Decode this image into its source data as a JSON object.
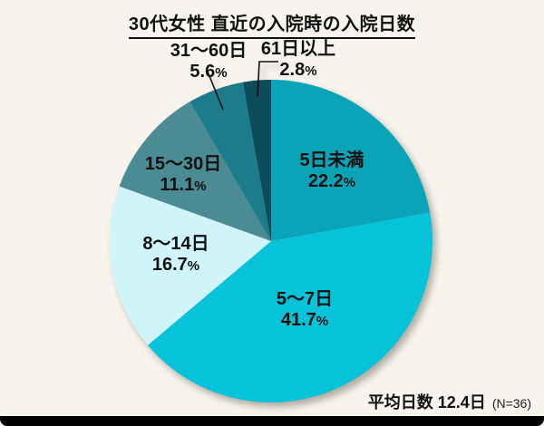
{
  "title": "30代女性 直近の入院時の入院日数",
  "chart_data": {
    "type": "pie",
    "title": "30代女性 直近の入院時の入院日数",
    "start_angle": "12 o'clock",
    "direction": "clockwise",
    "percent_suffix": "%",
    "slices": [
      {
        "label": "5日未満",
        "pct": "22.2",
        "value": 22.2,
        "color": "#0aa4b8"
      },
      {
        "label": "5〜7日",
        "pct": "41.7",
        "value": 41.7,
        "color": "#06c3d9"
      },
      {
        "label": "8〜14日",
        "pct": "16.7",
        "value": 16.7,
        "color": "#cff5fb"
      },
      {
        "label": "15〜30日",
        "pct": "11.1",
        "value": 11.1,
        "color": "#4b8b94"
      },
      {
        "label": "31〜60日",
        "pct": "5.6",
        "value": 5.6,
        "color": "#1d7c8b"
      },
      {
        "label": "61日以上",
        "pct": "2.8",
        "value": 2.8,
        "color": "#0d4d5b"
      }
    ],
    "footnote": {
      "average": "平均日数 12.4日",
      "sample": "(N=36)"
    }
  },
  "colors": {
    "background": "#f7f4ee",
    "text": "#111111",
    "leader_line": "#111111",
    "bottom_bar": "#000000"
  }
}
